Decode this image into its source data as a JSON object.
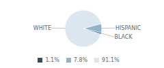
{
  "chart_data": {
    "type": "pie",
    "categories": [
      "WHITE",
      "HISPANIC",
      "BLACK"
    ],
    "values": [
      91.1,
      7.8,
      1.1
    ],
    "value_labels": [
      "91.1%",
      "7.8%",
      "1.1%"
    ],
    "colors": [
      "#dce6f1",
      "#8db5cc",
      "#2e4d6b"
    ],
    "legend": "bottom"
  }
}
